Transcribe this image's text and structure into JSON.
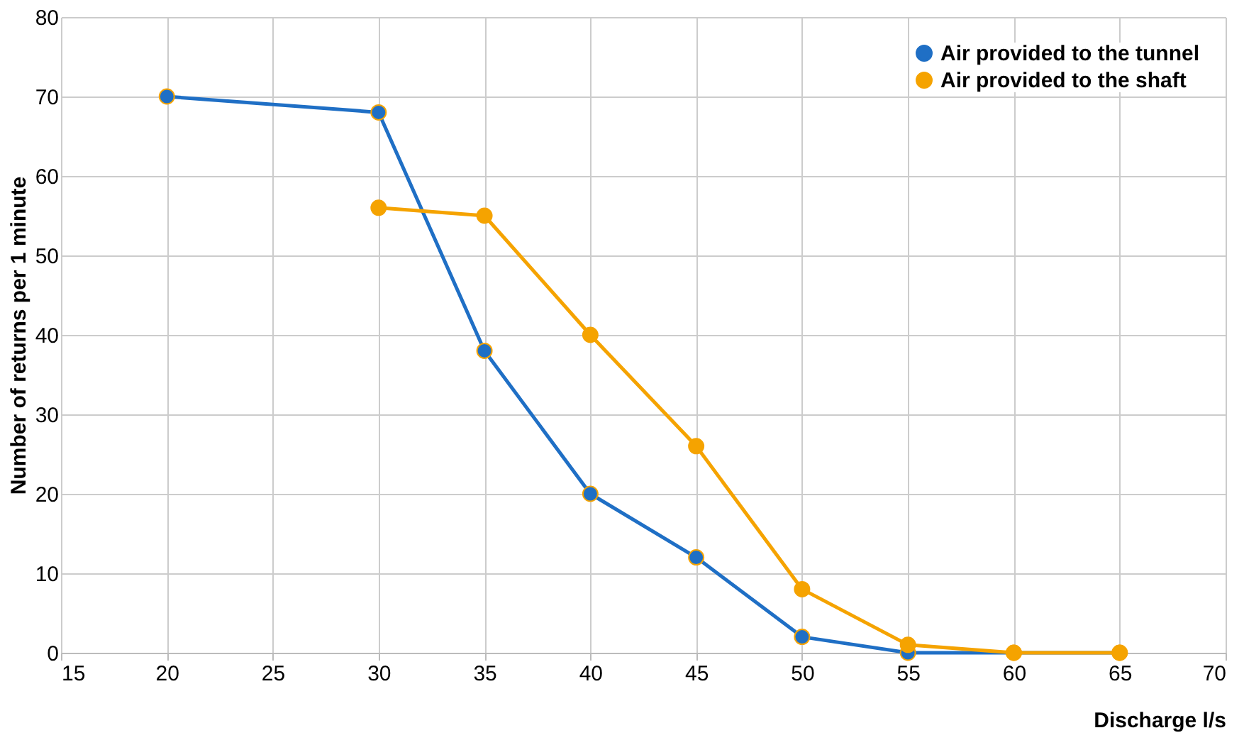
{
  "chart_data": {
    "type": "line",
    "xlabel": "Discharge l/s",
    "ylabel": "Number of returns per 1 minute",
    "xlim": [
      15,
      70
    ],
    "xticks": [
      15,
      20,
      25,
      30,
      35,
      40,
      45,
      50,
      55,
      60,
      65,
      70
    ],
    "ylim": [
      0,
      80
    ],
    "yticks": [
      0,
      10,
      20,
      30,
      40,
      50,
      60,
      70,
      80
    ],
    "grid": true,
    "legend": "top right",
    "marker": "circle",
    "line_style": "solid",
    "series": [
      {
        "name": "Air provided to the tunnel",
        "color": "#1f6fc5",
        "x": [
          20,
          30,
          35,
          40,
          45,
          50,
          55,
          60,
          65
        ],
        "values": [
          70,
          68,
          38,
          20,
          12,
          2,
          0,
          0,
          0
        ]
      },
      {
        "name": "Air provided to the shaft",
        "color": "#f5a300",
        "x": [
          30,
          35,
          40,
          45,
          50,
          55,
          60,
          65
        ],
        "values": [
          56,
          55,
          40,
          26,
          8,
          1,
          0,
          0
        ]
      }
    ]
  }
}
